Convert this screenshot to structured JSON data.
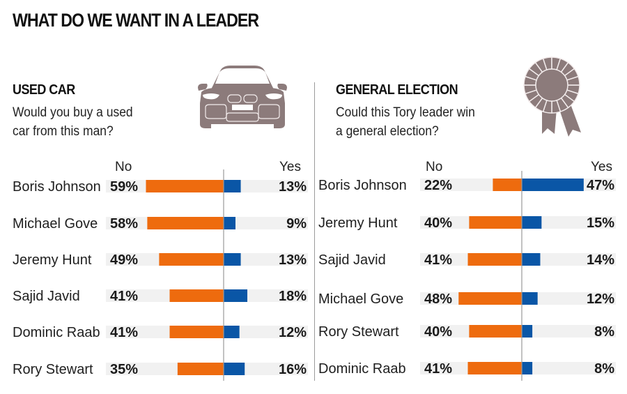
{
  "title": "WHAT DO WE WANT IN A LEADER",
  "colors": {
    "no": "#ee6b0e",
    "yes": "#0a56a6",
    "track": "#f1f1f1",
    "icon": "#8c7b7b",
    "axis": "#9a9a9a"
  },
  "icons": {
    "left": "car-icon",
    "right": "rosette-icon"
  },
  "chart_data": [
    {
      "type": "bar",
      "orientation": "diverging-horizontal",
      "title": "USED CAR",
      "subtitle_lines": [
        "Would you buy a used",
        "car from this man?"
      ],
      "legend": {
        "no_label": "No",
        "yes_label": "Yes"
      },
      "categories": [
        "Boris Johnson",
        "Michael Gove",
        "Jeremy Hunt",
        "Sajid Javid",
        "Dominic Raab",
        "Rory Stewart"
      ],
      "series": [
        {
          "name": "No",
          "values": [
            59,
            58,
            49,
            41,
            41,
            35
          ],
          "labels": [
            "59%",
            "58%",
            "49%",
            "41%",
            "41%",
            "35%"
          ]
        },
        {
          "name": "Yes",
          "values": [
            13,
            9,
            13,
            18,
            12,
            16
          ],
          "labels": [
            "13%",
            "9%",
            "13%",
            "18%",
            "12%",
            "16%"
          ]
        }
      ],
      "unit": "%"
    },
    {
      "type": "bar",
      "orientation": "diverging-horizontal",
      "title": "GENERAL ELECTION",
      "subtitle_lines": [
        "Could this Tory leader win",
        "a general election?"
      ],
      "legend": {
        "no_label": "No",
        "yes_label": "Yes"
      },
      "categories": [
        "Boris Johnson",
        "Jeremy Hunt",
        "Sajid Javid",
        "Michael Gove",
        "Rory Stewart",
        "Dominic Raab"
      ],
      "series": [
        {
          "name": "No",
          "values": [
            22,
            40,
            41,
            48,
            40,
            41
          ],
          "labels": [
            "22%",
            "40%",
            "41%",
            "48%",
            "40%",
            "41%"
          ]
        },
        {
          "name": "Yes",
          "values": [
            47,
            15,
            14,
            12,
            8,
            8
          ],
          "labels": [
            "47%",
            "15%",
            "14%",
            "12%",
            "8%",
            "8%"
          ]
        }
      ],
      "unit": "%"
    }
  ]
}
